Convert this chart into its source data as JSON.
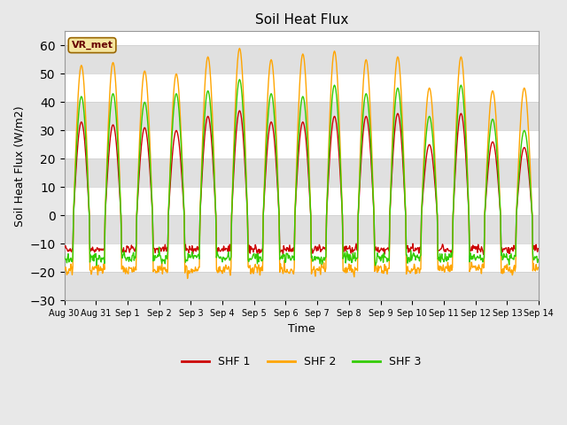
{
  "title": "Soil Heat Flux",
  "xlabel": "Time",
  "ylabel": "Soil Heat Flux (W/m2)",
  "ylim": [
    -30,
    65
  ],
  "yticks": [
    -30,
    -20,
    -10,
    0,
    10,
    20,
    30,
    40,
    50,
    60
  ],
  "fig_bg_color": "#e8e8e8",
  "plot_bg_color": "#ffffff",
  "band_color": "#e0e0e0",
  "shf1_color": "#cc0000",
  "shf2_color": "#ffa500",
  "shf3_color": "#33cc00",
  "legend_label1": "SHF 1",
  "legend_label2": "SHF 2",
  "legend_label3": "SHF 3",
  "station_label": "VR_met",
  "n_days": 15,
  "pts_per_day": 48,
  "tick_labels": [
    "Aug 30",
    "Aug 31",
    "Sep 1",
    "Sep 2",
    "Sep 3",
    "Sep 4",
    "Sep 5",
    "Sep 6",
    "Sep 7",
    "Sep 8",
    "Sep 9",
    "Sep 10",
    "Sep 11",
    "Sep 12",
    "Sep 13",
    "Sep 14"
  ],
  "shf2_amps": [
    53,
    54,
    51,
    50,
    56,
    59,
    55,
    57,
    58,
    55,
    56,
    45,
    56,
    44,
    45
  ],
  "shf3_amps": [
    42,
    43,
    40,
    43,
    44,
    48,
    43,
    42,
    46,
    43,
    45,
    35,
    46,
    34,
    30
  ],
  "shf1_amps": [
    33,
    32,
    31,
    30,
    35,
    37,
    33,
    33,
    35,
    35,
    36,
    25,
    36,
    26,
    24
  ],
  "shf1_night": -12,
  "shf2_night": -19,
  "shf3_night": -15,
  "linewidth": 1.0
}
